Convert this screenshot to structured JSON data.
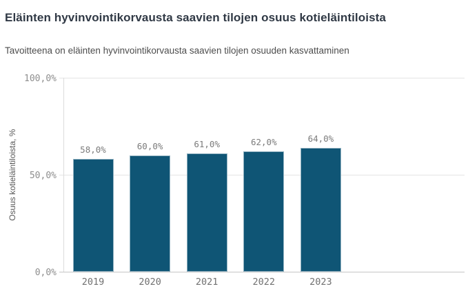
{
  "header": {
    "title": "Eläinten hyvinvointikorvausta saavien tilojen osuus kotieläintiloista",
    "subtitle": "Tavoitteena on eläinten hyvinvointikorvausta saavien tilojen osuuden kasvattaminen"
  },
  "chart_data": {
    "type": "bar",
    "title": "Eläinten hyvinvointikorvausta saavien tilojen osuus kotieläintiloista",
    "subtitle": "Tavoitteena on eläinten hyvinvointikorvausta saavien tilojen osuuden kasvattaminen",
    "categories": [
      "2019",
      "2020",
      "2021",
      "2022",
      "2023"
    ],
    "values": [
      58,
      60,
      61,
      62,
      64
    ],
    "value_labels": [
      "58,0%",
      "60,0%",
      "61,0%",
      "62,0%",
      "64,0%"
    ],
    "xlabel": "",
    "ylabel": "Osuus kotieläintiloista, %",
    "ylim": [
      0,
      100
    ],
    "yticks": [
      {
        "value": 0,
        "label": "0,0%"
      },
      {
        "value": 50,
        "label": "50,0%"
      },
      {
        "value": 100,
        "label": "100,0%"
      }
    ],
    "grid": true,
    "legend": false,
    "bar_color": "#0f5575"
  }
}
